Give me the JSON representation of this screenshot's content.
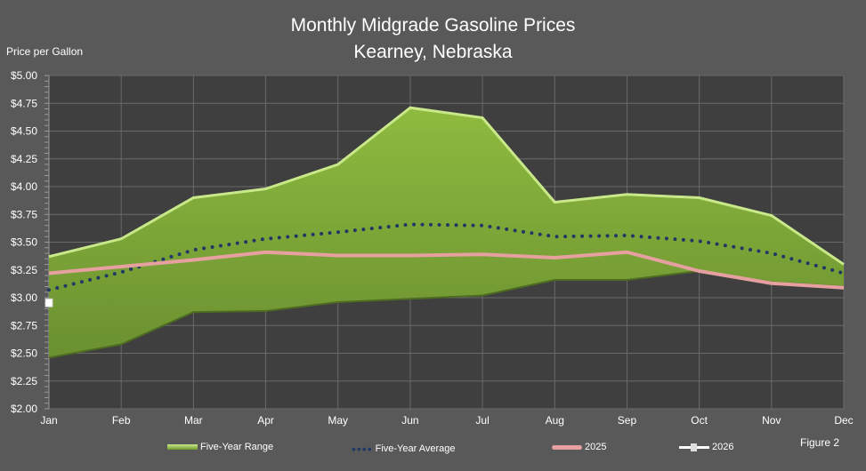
{
  "chart_data": {
    "type": "area",
    "title": "Monthly Midgrade Gasoline Prices",
    "subtitle": "Kearney, Nebraska",
    "ylabel": "Price per Gallon",
    "note": "Figure 2",
    "categories": [
      "Jan",
      "Feb",
      "Mar",
      "Apr",
      "May",
      "Jun",
      "Jul",
      "Aug",
      "Sep",
      "Oct",
      "Nov",
      "Dec"
    ],
    "ylim": [
      2.0,
      5.0
    ],
    "yticks": [
      "$2.00",
      "$2.25",
      "$2.50",
      "$2.75",
      "$3.00",
      "$3.25",
      "$3.50",
      "$3.75",
      "$4.00",
      "$4.25",
      "$4.50",
      "$4.75",
      "$5.00"
    ],
    "grid": true,
    "legend": "bottom",
    "series": [
      {
        "name": "Five-Year Range",
        "kind": "range",
        "color": "#8db340",
        "high": [
          3.37,
          3.53,
          3.9,
          3.98,
          4.2,
          4.71,
          4.62,
          3.86,
          3.93,
          3.9,
          3.74,
          3.3
        ],
        "low": [
          2.46,
          2.58,
          2.87,
          2.88,
          2.96,
          2.99,
          3.02,
          3.16,
          3.16,
          3.24,
          3.14,
          3.1
        ]
      },
      {
        "name": "Five-Year Average",
        "kind": "dotted",
        "color": "#1f3864",
        "values": [
          3.07,
          3.23,
          3.43,
          3.53,
          3.59,
          3.66,
          3.65,
          3.55,
          3.56,
          3.51,
          3.4,
          3.22
        ]
      },
      {
        "name": "2025",
        "kind": "line",
        "color": "#e6a0a0",
        "values": [
          3.22,
          3.28,
          3.34,
          3.41,
          3.38,
          3.38,
          3.39,
          3.36,
          3.41,
          3.24,
          3.13,
          3.09
        ]
      },
      {
        "name": "2026",
        "kind": "marker",
        "color": "#ffffff",
        "values": [
          2.95,
          null,
          null,
          null,
          null,
          null,
          null,
          null,
          null,
          null,
          null,
          null
        ]
      }
    ]
  }
}
